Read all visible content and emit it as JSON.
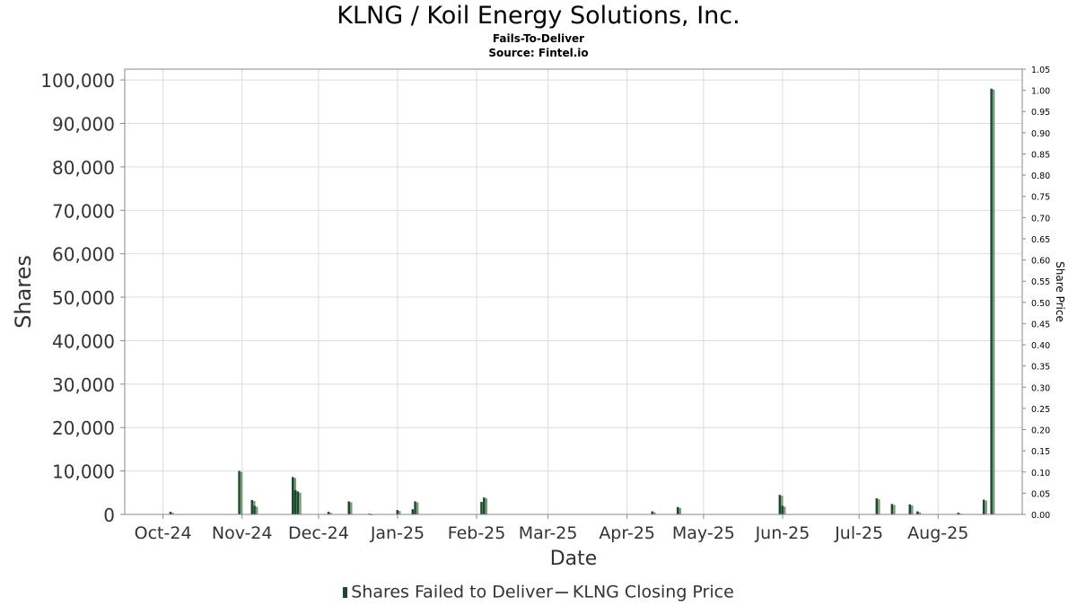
{
  "chart_data": {
    "type": "bar",
    "title": "KLNG / Koil Energy Solutions, Inc.",
    "subtitle": "Fails-To-Deliver",
    "source": "Source: Fintel.io",
    "xlabel": "Date",
    "ylabel": "Shares",
    "y2label": "Share Price",
    "ylim": [
      0,
      102500
    ],
    "y2lim": [
      0,
      1.05
    ],
    "yticks": [
      "0",
      "10,000",
      "20,000",
      "30,000",
      "40,000",
      "50,000",
      "60,000",
      "70,000",
      "80,000",
      "90,000",
      "100,000"
    ],
    "y2ticks": [
      "0.00",
      "0.05",
      "0.10",
      "0.15",
      "0.20",
      "0.25",
      "0.30",
      "0.35",
      "0.40",
      "0.45",
      "0.50",
      "0.55",
      "0.60",
      "0.65",
      "0.70",
      "0.75",
      "0.80",
      "0.85",
      "0.90",
      "0.95",
      "1.00",
      "1.05"
    ],
    "xticks": [
      "Oct-24",
      "Nov-24",
      "Dec-24",
      "Jan-25",
      "Feb-25",
      "Mar-25",
      "Apr-25",
      "May-25",
      "Jun-25",
      "Jul-25",
      "Aug-25"
    ],
    "x_range": [
      "2024-09-16",
      "2025-09-03"
    ],
    "grid": true,
    "legend_position": "bottom",
    "colors": {
      "bar": "#1a4a2a",
      "bar_shade": "#7a9a7a",
      "grid": "#dddddd",
      "line": "#555555"
    },
    "series": [
      {
        "name": "Shares Failed to Deliver",
        "points": [
          {
            "date": "2024-10-04",
            "value": 600
          },
          {
            "date": "2024-10-31",
            "value": 10000
          },
          {
            "date": "2024-11-05",
            "value": 3300
          },
          {
            "date": "2024-11-06",
            "value": 2000
          },
          {
            "date": "2024-11-21",
            "value": 8600
          },
          {
            "date": "2024-11-22",
            "value": 5600
          },
          {
            "date": "2024-11-23",
            "value": 5200
          },
          {
            "date": "2024-12-05",
            "value": 600
          },
          {
            "date": "2024-12-13",
            "value": 3000
          },
          {
            "date": "2024-12-21",
            "value": 200
          },
          {
            "date": "2025-01-01",
            "value": 1000
          },
          {
            "date": "2025-01-07",
            "value": 1200
          },
          {
            "date": "2025-01-08",
            "value": 3000
          },
          {
            "date": "2025-02-03",
            "value": 2900
          },
          {
            "date": "2025-02-04",
            "value": 3900
          },
          {
            "date": "2025-04-11",
            "value": 700
          },
          {
            "date": "2025-04-21",
            "value": 1700
          },
          {
            "date": "2025-05-31",
            "value": 4500
          },
          {
            "date": "2025-06-01",
            "value": 2000
          },
          {
            "date": "2025-07-08",
            "value": 3700
          },
          {
            "date": "2025-07-14",
            "value": 2400
          },
          {
            "date": "2025-07-21",
            "value": 2300
          },
          {
            "date": "2025-07-24",
            "value": 700
          },
          {
            "date": "2025-08-09",
            "value": 400
          },
          {
            "date": "2025-08-19",
            "value": 3400
          },
          {
            "date": "2025-08-22",
            "value": 98000
          }
        ]
      },
      {
        "name": "KLNG Closing Price",
        "points": []
      }
    ]
  },
  "legend": {
    "bar_label": "Shares Failed to Deliver",
    "line_label": "KLNG Closing Price"
  }
}
